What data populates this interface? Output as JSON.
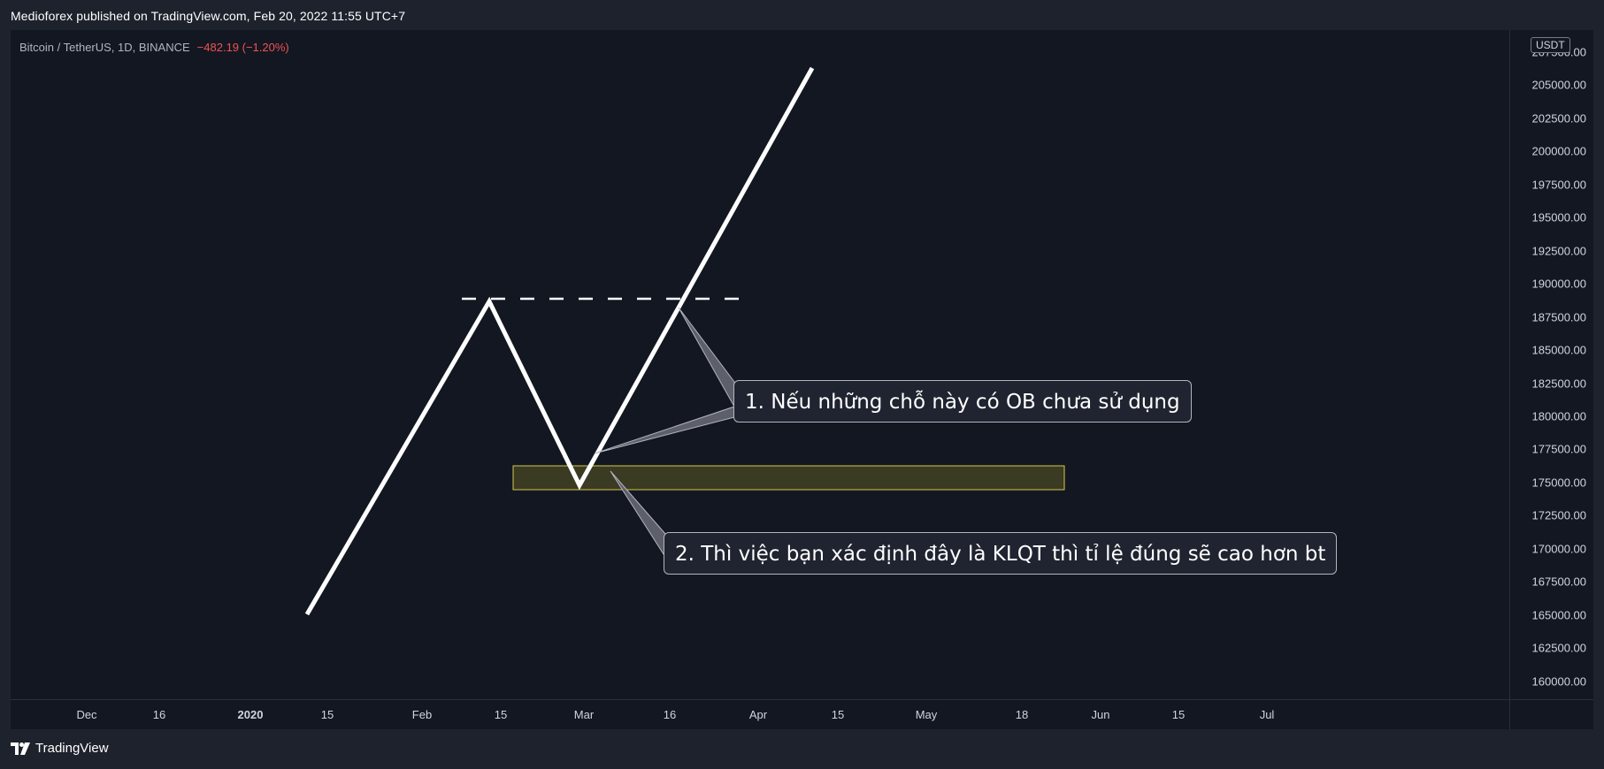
{
  "header": {
    "published": "Medioforex published on TradingView.com, Feb 20, 2022 11:55 UTC+7"
  },
  "legend": {
    "symbol": "Bitcoin / TetherUS, 1D, BINANCE",
    "change": "−482.19 (−1.20%)"
  },
  "price_axis": {
    "currency": "USDT",
    "labels": [
      "207500.00",
      "205000.00",
      "202500.00",
      "200000.00",
      "197500.00",
      "195000.00",
      "192500.00",
      "190000.00",
      "187500.00",
      "185000.00",
      "182500.00",
      "180000.00",
      "177500.00",
      "175000.00",
      "172500.00",
      "170000.00",
      "167500.00",
      "165000.00",
      "162500.00",
      "160000.00"
    ]
  },
  "time_axis": {
    "labels": [
      {
        "text": "Dec",
        "bold": false
      },
      {
        "text": "16",
        "bold": false
      },
      {
        "text": "2020",
        "bold": true
      },
      {
        "text": "15",
        "bold": false
      },
      {
        "text": "Feb",
        "bold": false
      },
      {
        "text": "15",
        "bold": false
      },
      {
        "text": "Mar",
        "bold": false
      },
      {
        "text": "16",
        "bold": false
      },
      {
        "text": "Apr",
        "bold": false
      },
      {
        "text": "15",
        "bold": false
      },
      {
        "text": "May",
        "bold": false
      },
      {
        "text": "18",
        "bold": false
      },
      {
        "text": "Jun",
        "bold": false
      },
      {
        "text": "15",
        "bold": false
      },
      {
        "text": "Jul",
        "bold": false
      }
    ]
  },
  "annotations": {
    "callout1": "1. Nếu những chỗ này có OB chưa sử dụng",
    "callout2": "2. Thì việc bạn xác định đây là KLQT thì tỉ lệ đúng sẽ cao hơn bt"
  },
  "footer": {
    "brand": "TradingView"
  },
  "colors": {
    "background": "#131722",
    "path": "#ffffff",
    "zone_fill": "#3b3a22",
    "zone_border": "#d4c84a",
    "negative": "#ef5350"
  }
}
